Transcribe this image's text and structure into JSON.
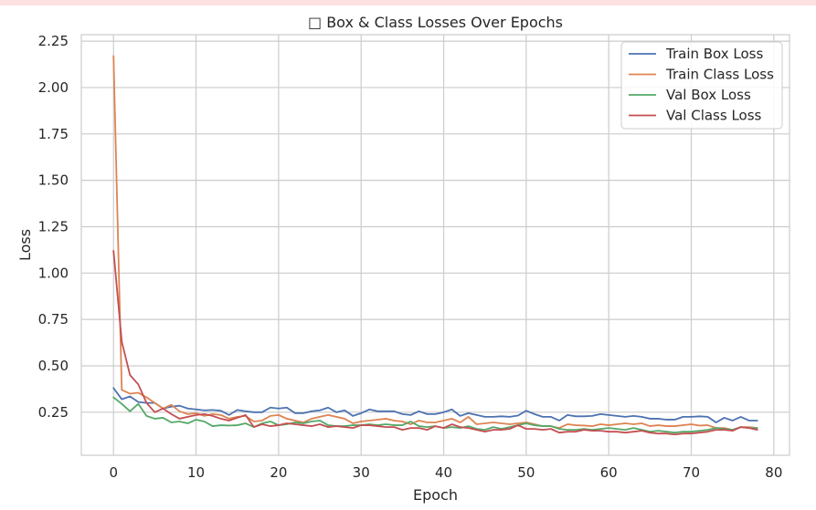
{
  "chart_data": {
    "type": "line",
    "title": "□ Box & Class Losses Over Epochs",
    "xlabel": "Epoch",
    "ylabel": "Loss",
    "xlim": [
      -3.9,
      81.9
    ],
    "ylim": [
      0.018,
      2.285
    ],
    "xticks": [
      0,
      10,
      20,
      30,
      40,
      50,
      60,
      70,
      80
    ],
    "yticks": [
      0.25,
      0.5,
      0.75,
      1.0,
      1.25,
      1.5,
      1.75,
      2.0,
      2.25
    ],
    "xtick_labels": [
      "0",
      "10",
      "20",
      "30",
      "40",
      "50",
      "60",
      "70",
      "80"
    ],
    "ytick_labels": [
      "0.25",
      "0.50",
      "0.75",
      "1.00",
      "1.25",
      "1.50",
      "1.75",
      "2.00",
      "2.25"
    ],
    "grid": true,
    "legend_position": "top-right",
    "series": [
      {
        "name": "Train Box Loss",
        "color": "#4c72b0",
        "values": [
          0.38,
          0.32,
          0.335,
          0.305,
          0.3,
          0.3,
          0.27,
          0.28,
          0.285,
          0.27,
          0.265,
          0.26,
          0.262,
          0.258,
          0.235,
          0.262,
          0.255,
          0.25,
          0.25,
          0.275,
          0.27,
          0.275,
          0.245,
          0.245,
          0.255,
          0.26,
          0.275,
          0.25,
          0.26,
          0.23,
          0.245,
          0.265,
          0.255,
          0.255,
          0.255,
          0.24,
          0.235,
          0.255,
          0.24,
          0.24,
          0.25,
          0.265,
          0.23,
          0.245,
          0.235,
          0.225,
          0.225,
          0.228,
          0.225,
          0.232,
          0.258,
          0.24,
          0.225,
          0.225,
          0.205,
          0.235,
          0.228,
          0.228,
          0.23,
          0.24,
          0.235,
          0.23,
          0.225,
          0.23,
          0.225,
          0.215,
          0.215,
          0.21,
          0.21,
          0.225,
          0.225,
          0.228,
          0.225,
          0.195,
          0.22,
          0.205,
          0.225,
          0.205,
          0.205
        ]
      },
      {
        "name": "Train Class Loss",
        "color": "#dd8452",
        "values": [
          2.17,
          0.37,
          0.35,
          0.355,
          0.33,
          0.3,
          0.27,
          0.29,
          0.255,
          0.24,
          0.245,
          0.23,
          0.24,
          0.235,
          0.215,
          0.225,
          0.23,
          0.2,
          0.205,
          0.23,
          0.235,
          0.215,
          0.205,
          0.195,
          0.215,
          0.225,
          0.235,
          0.225,
          0.215,
          0.19,
          0.2,
          0.205,
          0.21,
          0.215,
          0.205,
          0.2,
          0.185,
          0.205,
          0.195,
          0.195,
          0.205,
          0.215,
          0.195,
          0.225,
          0.185,
          0.19,
          0.195,
          0.19,
          0.185,
          0.19,
          0.195,
          0.185,
          0.175,
          0.175,
          0.165,
          0.185,
          0.18,
          0.178,
          0.175,
          0.185,
          0.18,
          0.185,
          0.19,
          0.185,
          0.19,
          0.175,
          0.18,
          0.175,
          0.175,
          0.18,
          0.185,
          0.178,
          0.18,
          0.165,
          0.165,
          0.155,
          0.17,
          0.17,
          0.165
        ]
      },
      {
        "name": "Val Box Loss",
        "color": "#55a868",
        "values": [
          0.33,
          0.295,
          0.255,
          0.295,
          0.23,
          0.215,
          0.22,
          0.195,
          0.2,
          0.19,
          0.21,
          0.2,
          0.175,
          0.18,
          0.178,
          0.18,
          0.19,
          0.17,
          0.19,
          0.2,
          0.18,
          0.185,
          0.195,
          0.19,
          0.2,
          0.205,
          0.18,
          0.175,
          0.175,
          0.18,
          0.18,
          0.185,
          0.18,
          0.185,
          0.18,
          0.18,
          0.2,
          0.175,
          0.17,
          0.175,
          0.165,
          0.17,
          0.165,
          0.175,
          0.16,
          0.155,
          0.17,
          0.16,
          0.17,
          0.18,
          0.19,
          0.18,
          0.175,
          0.175,
          0.16,
          0.155,
          0.155,
          0.16,
          0.155,
          0.16,
          0.165,
          0.16,
          0.155,
          0.165,
          0.155,
          0.145,
          0.15,
          0.145,
          0.14,
          0.145,
          0.145,
          0.15,
          0.155,
          0.165,
          0.16,
          0.155,
          0.17,
          0.165,
          0.165
        ]
      },
      {
        "name": "Val Class Loss",
        "color": "#c44e52",
        "values": [
          1.12,
          0.63,
          0.45,
          0.4,
          0.3,
          0.25,
          0.27,
          0.24,
          0.215,
          0.225,
          0.235,
          0.24,
          0.23,
          0.215,
          0.205,
          0.22,
          0.235,
          0.17,
          0.185,
          0.175,
          0.18,
          0.19,
          0.185,
          0.18,
          0.175,
          0.185,
          0.17,
          0.175,
          0.17,
          0.165,
          0.18,
          0.18,
          0.175,
          0.17,
          0.17,
          0.155,
          0.165,
          0.165,
          0.155,
          0.175,
          0.165,
          0.185,
          0.17,
          0.165,
          0.155,
          0.145,
          0.155,
          0.155,
          0.16,
          0.18,
          0.16,
          0.16,
          0.155,
          0.16,
          0.14,
          0.145,
          0.145,
          0.155,
          0.15,
          0.15,
          0.145,
          0.145,
          0.14,
          0.145,
          0.15,
          0.14,
          0.135,
          0.135,
          0.13,
          0.135,
          0.135,
          0.14,
          0.145,
          0.155,
          0.155,
          0.15,
          0.17,
          0.165,
          0.155
        ]
      }
    ]
  }
}
